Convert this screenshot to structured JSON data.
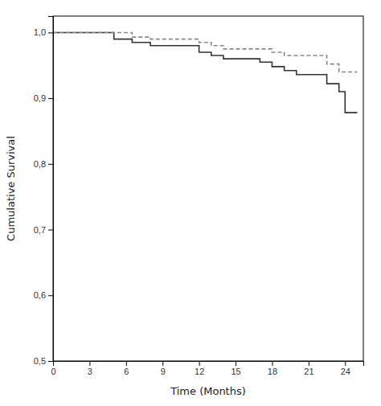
{
  "chart_data": {
    "type": "line",
    "xlabel": "Time (Months)",
    "ylabel": "Cumulative Survival",
    "series": [
      {
        "color": "#333333",
        "line_style": "solid",
        "x": [
          0,
          5,
          5,
          6.5,
          6.5,
          8,
          8,
          12,
          12,
          13,
          13,
          14,
          14,
          17,
          17,
          18,
          18,
          19,
          19,
          20,
          20,
          22.5,
          22.5,
          23.5,
          23.5,
          24,
          24,
          25
        ],
        "values": [
          1.0,
          1.0,
          0.99,
          0.99,
          0.985,
          0.985,
          0.98,
          0.98,
          0.97,
          0.97,
          0.965,
          0.965,
          0.96,
          0.96,
          0.955,
          0.955,
          0.948,
          0.948,
          0.942,
          0.942,
          0.936,
          0.936,
          0.922,
          0.922,
          0.91,
          0.91,
          0.878,
          0.878
        ]
      },
      {
        "color": "#888888",
        "line_style": "dashed",
        "x": [
          0,
          6.5,
          6.5,
          8,
          8,
          12,
          12,
          13,
          13,
          14,
          14,
          18,
          18,
          19,
          19,
          22.5,
          22.5,
          23.5,
          23.5,
          25
        ],
        "values": [
          1.0,
          1.0,
          0.993,
          0.993,
          0.99,
          0.99,
          0.985,
          0.985,
          0.98,
          0.98,
          0.975,
          0.975,
          0.97,
          0.97,
          0.965,
          0.965,
          0.952,
          0.952,
          0.94,
          0.94
        ]
      }
    ],
    "xlim": [
      0,
      25.5
    ],
    "ylim": [
      0.5,
      1.025
    ],
    "xticks": [
      0,
      3,
      6,
      9,
      12,
      15,
      18,
      21,
      24
    ],
    "yticks": [
      {
        "value": 0.5,
        "label": "0,5"
      },
      {
        "value": 0.6,
        "label": "0,6"
      },
      {
        "value": 0.7,
        "label": "0,7"
      },
      {
        "value": 0.8,
        "label": "0,8"
      },
      {
        "value": 0.9,
        "label": "0,9"
      },
      {
        "value": 1.0,
        "label": "1,0"
      }
    ],
    "grid": false
  }
}
